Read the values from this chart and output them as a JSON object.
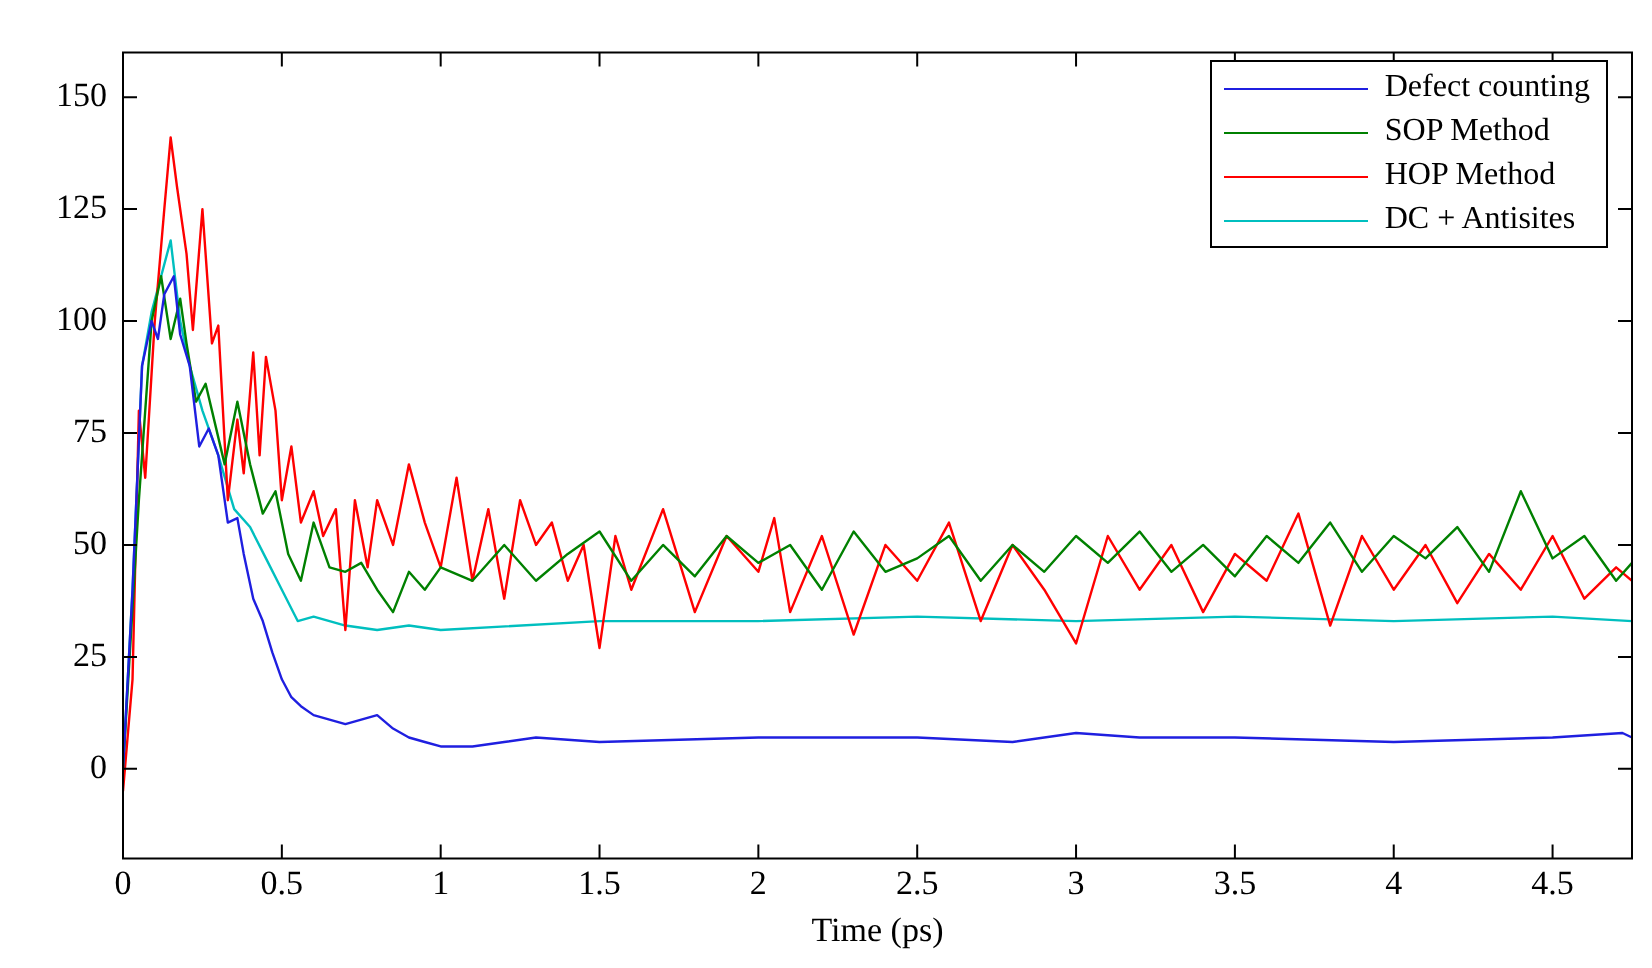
{
  "chart_data": {
    "type": "line",
    "xlabel": "Time (ps)",
    "xlim": [
      0,
      4.75
    ],
    "xticks": [
      0,
      0.5,
      1,
      1.5,
      2,
      2.5,
      3,
      3.5,
      4,
      4.5
    ],
    "ylim": [
      -20,
      160
    ],
    "yticks": [
      0,
      25,
      50,
      75,
      100,
      125,
      150
    ],
    "grid": false,
    "legend": "top right",
    "marker": "none",
    "line_style": "solid",
    "series": [
      {
        "name": "Defect counting",
        "color": "#1f1fe0",
        "x": [
          0,
          0.03,
          0.06,
          0.09,
          0.11,
          0.13,
          0.16,
          0.18,
          0.21,
          0.24,
          0.27,
          0.3,
          0.33,
          0.36,
          0.38,
          0.41,
          0.44,
          0.47,
          0.5,
          0.53,
          0.56,
          0.6,
          0.65,
          0.7,
          0.75,
          0.8,
          0.85,
          0.9,
          0.95,
          1.0,
          1.1,
          1.2,
          1.3,
          1.5,
          2.0,
          2.5,
          2.8,
          3.0,
          3.2,
          3.5,
          4.0,
          4.5,
          4.72,
          4.75
        ],
        "values": [
          0,
          40,
          90,
          100,
          96,
          106,
          110,
          97,
          90,
          72,
          76,
          70,
          55,
          56,
          48,
          38,
          33,
          26,
          20,
          16,
          14,
          12,
          11,
          10,
          11,
          12,
          9,
          7,
          6,
          5,
          5,
          6,
          7,
          6,
          7,
          7,
          6,
          8,
          7,
          7,
          6,
          7,
          8,
          7
        ]
      },
      {
        "name": "SOP Method",
        "color": "#008000",
        "x": [
          0,
          0.05,
          0.09,
          0.12,
          0.15,
          0.18,
          0.2,
          0.23,
          0.26,
          0.28,
          0.32,
          0.36,
          0.4,
          0.44,
          0.48,
          0.52,
          0.56,
          0.6,
          0.65,
          0.7,
          0.75,
          0.8,
          0.85,
          0.9,
          0.95,
          1.0,
          1.1,
          1.2,
          1.3,
          1.4,
          1.5,
          1.6,
          1.7,
          1.8,
          1.9,
          2.0,
          2.1,
          2.2,
          2.3,
          2.4,
          2.5,
          2.6,
          2.7,
          2.8,
          2.9,
          3.0,
          3.1,
          3.2,
          3.3,
          3.4,
          3.5,
          3.6,
          3.7,
          3.8,
          3.9,
          4.0,
          4.1,
          4.2,
          4.3,
          4.4,
          4.5,
          4.6,
          4.7,
          4.75
        ],
        "values": [
          0,
          60,
          100,
          110,
          96,
          105,
          95,
          82,
          86,
          80,
          68,
          82,
          68,
          57,
          62,
          48,
          42,
          55,
          45,
          44,
          46,
          40,
          35,
          44,
          40,
          45,
          42,
          50,
          42,
          48,
          53,
          42,
          50,
          43,
          52,
          46,
          50,
          40,
          53,
          44,
          47,
          52,
          42,
          50,
          44,
          52,
          46,
          53,
          44,
          50,
          43,
          52,
          46,
          55,
          44,
          52,
          47,
          54,
          44,
          62,
          47,
          52,
          42,
          46
        ]
      },
      {
        "name": "HOP Method",
        "color": "#ff0000",
        "x": [
          0,
          0.03,
          0.05,
          0.07,
          0.1,
          0.13,
          0.15,
          0.17,
          0.2,
          0.22,
          0.25,
          0.28,
          0.3,
          0.33,
          0.36,
          0.38,
          0.41,
          0.43,
          0.45,
          0.48,
          0.5,
          0.53,
          0.56,
          0.6,
          0.63,
          0.67,
          0.7,
          0.73,
          0.77,
          0.8,
          0.85,
          0.9,
          0.95,
          1.0,
          1.05,
          1.1,
          1.15,
          1.2,
          1.25,
          1.3,
          1.35,
          1.4,
          1.45,
          1.5,
          1.55,
          1.6,
          1.7,
          1.8,
          1.9,
          2.0,
          2.05,
          2.1,
          2.2,
          2.3,
          2.4,
          2.5,
          2.6,
          2.7,
          2.8,
          2.9,
          3.0,
          3.1,
          3.2,
          3.3,
          3.4,
          3.5,
          3.6,
          3.7,
          3.8,
          3.9,
          4.0,
          4.1,
          4.2,
          4.3,
          4.4,
          4.5,
          4.6,
          4.7,
          4.75
        ],
        "values": [
          -5,
          20,
          80,
          65,
          100,
          125,
          141,
          130,
          115,
          98,
          125,
          95,
          99,
          60,
          78,
          66,
          93,
          70,
          92,
          80,
          60,
          72,
          55,
          62,
          52,
          58,
          31,
          60,
          45,
          60,
          50,
          68,
          55,
          45,
          65,
          42,
          58,
          38,
          60,
          50,
          55,
          42,
          50,
          27,
          52,
          40,
          58,
          35,
          52,
          44,
          56,
          35,
          52,
          30,
          50,
          42,
          55,
          33,
          50,
          40,
          28,
          52,
          40,
          50,
          35,
          48,
          42,
          57,
          32,
          52,
          40,
          50,
          37,
          48,
          40,
          52,
          38,
          45,
          42
        ]
      },
      {
        "name": "DC + Antisites",
        "color": "#00bfbf",
        "x": [
          0,
          0.03,
          0.06,
          0.09,
          0.12,
          0.15,
          0.18,
          0.21,
          0.25,
          0.3,
          0.35,
          0.4,
          0.45,
          0.5,
          0.55,
          0.6,
          0.7,
          0.8,
          0.9,
          1.0,
          1.5,
          2.0,
          2.5,
          3.0,
          3.5,
          4.0,
          4.5,
          4.75
        ],
        "values": [
          0,
          40,
          90,
          102,
          110,
          118,
          100,
          90,
          80,
          70,
          58,
          54,
          47,
          40,
          33,
          34,
          32,
          31,
          32,
          31,
          33,
          33,
          34,
          33,
          34,
          33,
          34,
          33
        ]
      }
    ]
  }
}
